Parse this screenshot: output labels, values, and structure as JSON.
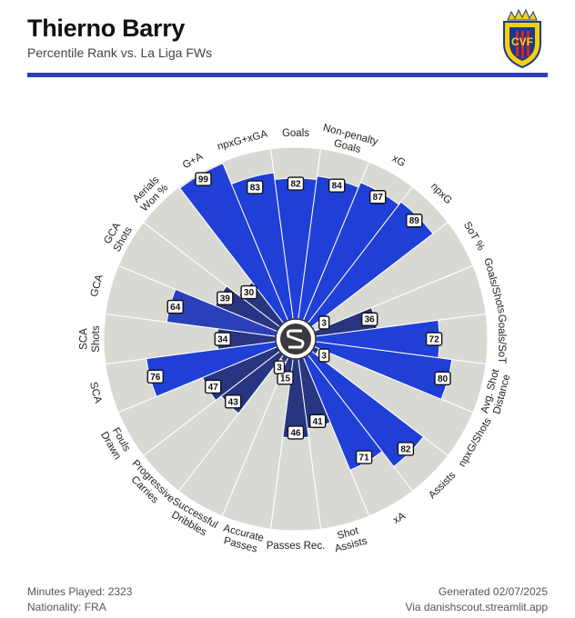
{
  "header": {
    "title": "Thierno Barry",
    "subtitle": "Percentile Rank vs. La Liga FWs"
  },
  "footer": {
    "minutes": "Minutes Played: 2323",
    "nationality": "Nationality: FRA",
    "generated": "Generated 02/07/2025",
    "source": "Via danishscout.streamlit.app"
  },
  "crest": {
    "text": "CVF",
    "colors": {
      "yellow": "#f5d10a",
      "blue": "#1a3a8c",
      "red": "#d8232a"
    }
  },
  "colors": {
    "accent": "#2b3fbd",
    "background_wedge": "#d9d9d4",
    "bright_blue": "#1f3fd6",
    "mid_blue": "#2a3fb8",
    "dark_blue": "#283580"
  },
  "chart_data": {
    "type": "radar-bar",
    "title": "Thierno Barry",
    "subtitle": "Percentile Rank vs. La Liga FWs",
    "range": [
      0,
      100
    ],
    "metrics": [
      {
        "label": [
          "Goals"
        ],
        "value": 82,
        "group": "shooting"
      },
      {
        "label": [
          "Non-penalty",
          "Goals"
        ],
        "value": 84,
        "group": "shooting"
      },
      {
        "label": [
          "xG"
        ],
        "value": 87,
        "group": "shooting"
      },
      {
        "label": [
          "npxG"
        ],
        "value": 89,
        "group": "shooting"
      },
      {
        "label": [
          "SoT %"
        ],
        "value": 3,
        "group": "shooting"
      },
      {
        "label": [
          "Goals/Shots"
        ],
        "value": 36,
        "group": "finishing"
      },
      {
        "label": [
          "Goals/SoT"
        ],
        "value": 72,
        "group": "finishing"
      },
      {
        "label": [
          "Avg. Shot",
          "Distance"
        ],
        "value": 80,
        "group": "finishing"
      },
      {
        "label": [
          "npxG/Shots"
        ],
        "value": 3,
        "group": "finishing"
      },
      {
        "label": [
          "Assists"
        ],
        "value": 82,
        "group": "finishing"
      },
      {
        "label": [
          "xA"
        ],
        "value": 71,
        "group": "creation"
      },
      {
        "label": [
          "Shot",
          "Assists"
        ],
        "value": 41,
        "group": "creation"
      },
      {
        "label": [
          "Passes Rec."
        ],
        "value": 46,
        "group": "creation"
      },
      {
        "label": [
          "Accurate",
          "Passes"
        ],
        "value": 15,
        "group": "creation"
      },
      {
        "label": [
          "Successful",
          "Dribbles"
        ],
        "value": 3,
        "group": "creation"
      },
      {
        "label": [
          "Progressive",
          "Carries"
        ],
        "value": 43,
        "group": "creation"
      },
      {
        "label": [
          "Fouls",
          "Drawn"
        ],
        "value": 47,
        "group": "creation"
      },
      {
        "label": [
          "SCA"
        ],
        "value": 76,
        "group": "shooting"
      },
      {
        "label": [
          "SCA",
          "Shots"
        ],
        "value": 34,
        "group": "creation"
      },
      {
        "label": [
          "GCA"
        ],
        "value": 64,
        "group": "creation"
      },
      {
        "label": [
          "GCA",
          "Shots"
        ],
        "value": 39,
        "group": "creation"
      },
      {
        "label": [
          "Aerials",
          "Won %"
        ],
        "value": 30,
        "group": "creation"
      },
      {
        "label": [
          "G+A"
        ],
        "value": 99,
        "group": "shooting"
      },
      {
        "label": [
          "npxG+xGA"
        ],
        "value": 83,
        "group": "shooting"
      }
    ],
    "extra_bar": {
      "label": [
        "npxG+xGA"
      ],
      "value": 86
    }
  }
}
